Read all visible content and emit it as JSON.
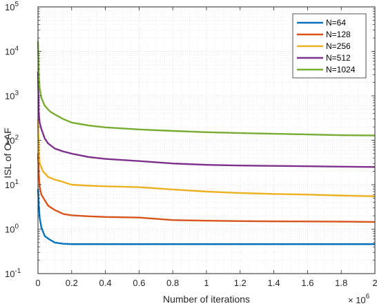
{
  "chart_data": {
    "type": "line",
    "xlabel": "Number of iterations",
    "ylabel": "ISL of O-AF",
    "x_exponent_base": "× 10",
    "x_exponent_power": "6",
    "xlim": [
      0,
      2
    ],
    "ylim": [
      0.1,
      100000
    ],
    "yscale": "log",
    "grid": "major and minor, dotted",
    "legend_position": "top-right",
    "x_ticks": [
      "0",
      "0.2",
      "0.4",
      "0.6",
      "0.8",
      "1",
      "1.2",
      "1.4",
      "1.6",
      "1.8",
      "2"
    ],
    "y_ticks": [
      {
        "base": "10",
        "exp": "-1"
      },
      {
        "base": "10",
        "exp": "0"
      },
      {
        "base": "10",
        "exp": "1"
      },
      {
        "base": "10",
        "exp": "2"
      },
      {
        "base": "10",
        "exp": "3"
      },
      {
        "base": "10",
        "exp": "4"
      },
      {
        "base": "10",
        "exp": "5"
      }
    ],
    "series": [
      {
        "name": "N=64",
        "color": "#0072BD",
        "points": [
          [
            0,
            8
          ],
          [
            0.005,
            3.5
          ],
          [
            0.01,
            1.8
          ],
          [
            0.02,
            1.1
          ],
          [
            0.04,
            0.7
          ],
          [
            0.07,
            0.58
          ],
          [
            0.1,
            0.5
          ],
          [
            0.15,
            0.47
          ],
          [
            0.2,
            0.46
          ],
          [
            0.4,
            0.46
          ],
          [
            0.6,
            0.46
          ],
          [
            0.8,
            0.46
          ],
          [
            1.0,
            0.46
          ],
          [
            1.2,
            0.46
          ],
          [
            1.4,
            0.46
          ],
          [
            1.6,
            0.46
          ],
          [
            1.8,
            0.46
          ],
          [
            2.0,
            0.46
          ]
        ]
      },
      {
        "name": "N=128",
        "color": "#D95319",
        "points": [
          [
            0,
            50
          ],
          [
            0.005,
            18
          ],
          [
            0.01,
            9
          ],
          [
            0.02,
            6
          ],
          [
            0.04,
            4.5
          ],
          [
            0.06,
            3.4
          ],
          [
            0.08,
            3.0
          ],
          [
            0.1,
            2.7
          ],
          [
            0.15,
            2.2
          ],
          [
            0.2,
            2.05
          ],
          [
            0.3,
            1.95
          ],
          [
            0.4,
            1.88
          ],
          [
            0.6,
            1.82
          ],
          [
            0.8,
            1.6
          ],
          [
            1.0,
            1.55
          ],
          [
            1.2,
            1.52
          ],
          [
            1.4,
            1.5
          ],
          [
            1.6,
            1.49
          ],
          [
            1.8,
            1.48
          ],
          [
            2.0,
            1.45
          ]
        ]
      },
      {
        "name": "N=256",
        "color": "#EDB120",
        "points": [
          [
            0,
            300
          ],
          [
            0.005,
            60
          ],
          [
            0.01,
            30
          ],
          [
            0.03,
            20
          ],
          [
            0.06,
            15
          ],
          [
            0.1,
            13
          ],
          [
            0.15,
            11.5
          ],
          [
            0.2,
            10
          ],
          [
            0.3,
            9.5
          ],
          [
            0.4,
            9.2
          ],
          [
            0.6,
            8.8
          ],
          [
            0.8,
            7.8
          ],
          [
            1.0,
            7.0
          ],
          [
            1.2,
            6.5
          ],
          [
            1.4,
            6.2
          ],
          [
            1.6,
            6.0
          ],
          [
            1.8,
            5.7
          ],
          [
            2.0,
            5.5
          ]
        ]
      },
      {
        "name": "N=512",
        "color": "#7E2F8E",
        "points": [
          [
            0,
            3500
          ],
          [
            0.005,
            400
          ],
          [
            0.01,
            250
          ],
          [
            0.02,
            180
          ],
          [
            0.04,
            110
          ],
          [
            0.06,
            85
          ],
          [
            0.1,
            65
          ],
          [
            0.15,
            56
          ],
          [
            0.2,
            50
          ],
          [
            0.3,
            42
          ],
          [
            0.4,
            38
          ],
          [
            0.6,
            34
          ],
          [
            0.8,
            30
          ],
          [
            1.0,
            28
          ],
          [
            1.2,
            27
          ],
          [
            1.4,
            26.5
          ],
          [
            1.6,
            26
          ],
          [
            1.8,
            25.5
          ],
          [
            2.0,
            25
          ]
        ]
      },
      {
        "name": "N=1024",
        "color": "#77AC30",
        "points": [
          [
            0,
            17000
          ],
          [
            0.005,
            3000
          ],
          [
            0.01,
            1500
          ],
          [
            0.02,
            900
          ],
          [
            0.04,
            600
          ],
          [
            0.07,
            450
          ],
          [
            0.1,
            380
          ],
          [
            0.15,
            300
          ],
          [
            0.2,
            250
          ],
          [
            0.3,
            215
          ],
          [
            0.4,
            195
          ],
          [
            0.6,
            175
          ],
          [
            0.8,
            162
          ],
          [
            1.0,
            152
          ],
          [
            1.2,
            145
          ],
          [
            1.4,
            140
          ],
          [
            1.6,
            135
          ],
          [
            1.8,
            130
          ],
          [
            2.0,
            128
          ]
        ]
      }
    ]
  }
}
